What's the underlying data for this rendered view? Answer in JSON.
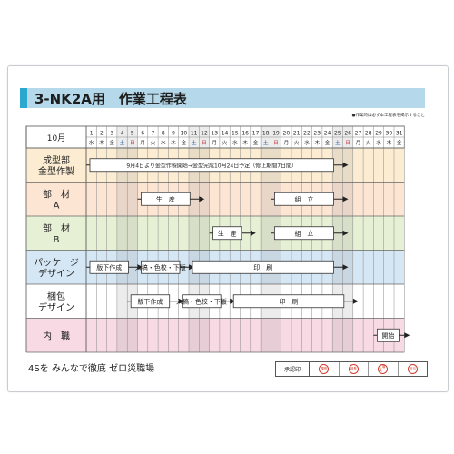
{
  "title": "3-NK2A用　作業工程表",
  "note": "●作業時は必ず本工程表を掲示すること",
  "month_label": "10月",
  "days": [
    "1",
    "2",
    "3",
    "4",
    "5",
    "6",
    "7",
    "8",
    "9",
    "10",
    "11",
    "12",
    "13",
    "14",
    "15",
    "16",
    "17",
    "18",
    "19",
    "20",
    "21",
    "22",
    "23",
    "24",
    "25",
    "26",
    "27",
    "28",
    "29",
    "30",
    "31"
  ],
  "weekdays": [
    "水",
    "木",
    "金",
    "土",
    "日",
    "月",
    "火",
    "水",
    "木",
    "金",
    "土",
    "日",
    "月",
    "火",
    "水",
    "木",
    "金",
    "土",
    "日",
    "月",
    "火",
    "水",
    "木",
    "金",
    "土",
    "日",
    "月",
    "火",
    "水",
    "木",
    "金"
  ],
  "rows": [
    {
      "label": [
        "成型部",
        "金型作製"
      ],
      "color": "#fbecd2"
    },
    {
      "label": [
        "部　材",
        "A"
      ],
      "color": "#fde5d3"
    },
    {
      "label": [
        "部　材",
        "B"
      ],
      "color": "#e6f0d4"
    },
    {
      "label": [
        "パッケージ",
        "デザイン"
      ],
      "color": "#d5e6f4"
    },
    {
      "label": [
        "梱包",
        "デザイン"
      ],
      "color": "#ffffff"
    },
    {
      "label": [
        "内　職"
      ],
      "color": "#f8dae5"
    }
  ],
  "tasks": [
    {
      "row": 0,
      "start": 1,
      "end": 25,
      "label": "9月4日より金型作製開始→金型完成10月24日予定（修正期間7日間）"
    },
    {
      "row": 1,
      "start": 6,
      "end": 11,
      "label": "生　産"
    },
    {
      "row": 1,
      "start": 19,
      "end": 25,
      "label": "組　立"
    },
    {
      "row": 2,
      "start": 13,
      "end": 16,
      "label": "生　産"
    },
    {
      "row": 2,
      "start": 19,
      "end": 25,
      "label": "組　立"
    },
    {
      "row": 3,
      "start": 1,
      "end": 5,
      "label": "版下作成"
    },
    {
      "row": 3,
      "start": 6,
      "end": 10,
      "label": "入稿・色校・下版"
    },
    {
      "row": 3,
      "start": 11,
      "end": 25,
      "label": "印　刷"
    },
    {
      "row": 4,
      "start": 5,
      "end": 9,
      "label": "版下作成"
    },
    {
      "row": 4,
      "start": 10,
      "end": 14,
      "label": "入稿・色校・下版"
    },
    {
      "row": 4,
      "start": 15,
      "end": 26,
      "label": "印　刷"
    },
    {
      "row": 5,
      "start": 29,
      "end": 31,
      "label": "開始"
    }
  ],
  "slogan": "4Sを みんなで徹底 ゼロ災職場",
  "approval_label": "承認印",
  "seals": [
    "課長",
    "部長",
    "工場長",
    "担当"
  ]
}
